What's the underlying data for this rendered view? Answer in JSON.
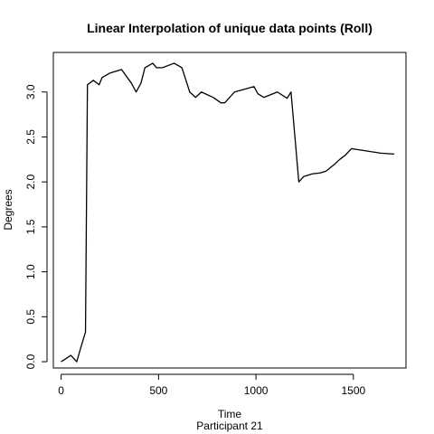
{
  "chart_data": {
    "type": "line",
    "title": "Linear Interpolation of unique data points (Roll)",
    "xlabel": "Time",
    "ylabel": "Degrees",
    "subtitle": "Participant  21",
    "xlim": [
      -40,
      1770
    ],
    "ylim": [
      -0.07,
      3.44
    ],
    "x_ticks": [
      0,
      500,
      1000,
      1500
    ],
    "y_ticks": [
      0.0,
      0.5,
      1.0,
      1.5,
      2.0,
      2.5,
      3.0
    ],
    "x_tick_labels": [
      "0",
      "500",
      "1000",
      "1500"
    ],
    "y_tick_labels": [
      "0.0",
      "0.5",
      "1.0",
      "1.5",
      "2.0",
      "2.5",
      "3.0"
    ],
    "grid": false,
    "series": [
      {
        "color": "#000000",
        "x": [
          0,
          50,
          80,
          100,
          125,
          135,
          165,
          195,
          210,
          250,
          310,
          360,
          385,
          410,
          430,
          470,
          490,
          520,
          580,
          620,
          660,
          690,
          720,
          780,
          820,
          840,
          890,
          990,
          1010,
          1040,
          1110,
          1160,
          1180,
          1220,
          1245,
          1290,
          1330,
          1360,
          1400,
          1430,
          1460,
          1490,
          1640,
          1710
        ],
        "y": [
          0.0,
          0.07,
          0.0,
          0.15,
          0.33,
          3.08,
          3.13,
          3.08,
          3.16,
          3.21,
          3.25,
          3.1,
          3.0,
          3.1,
          3.27,
          3.32,
          3.27,
          3.27,
          3.32,
          3.27,
          3.0,
          2.94,
          3.0,
          2.94,
          2.88,
          2.88,
          3.0,
          3.06,
          2.98,
          2.94,
          3.0,
          2.93,
          3.0,
          2.0,
          2.06,
          2.09,
          2.1,
          2.12,
          2.19,
          2.25,
          2.3,
          2.37,
          2.32,
          2.31
        ]
      }
    ]
  }
}
